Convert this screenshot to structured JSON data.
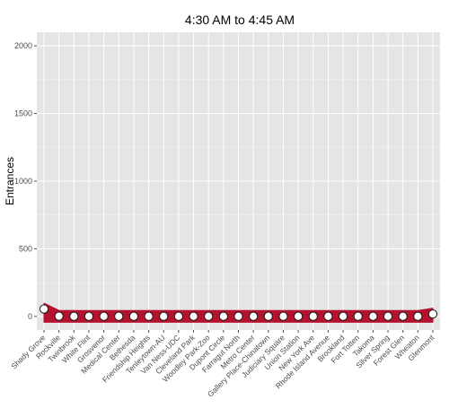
{
  "chart_data": {
    "type": "line",
    "title": "4:30 AM to 4:45 AM",
    "xlabel": "",
    "ylabel": "Entrances",
    "ylim": [
      -100,
      2100
    ],
    "yticks": [
      0,
      500,
      1000,
      1500,
      2000
    ],
    "grid": true,
    "colors": {
      "panel": "#e5e5e5",
      "grid": "#ffffff",
      "band": "#b5122e",
      "point_fill": "#ffffff",
      "point_stroke": "#1a1a1a"
    },
    "categories": [
      "Shady Grove",
      "Rockville",
      "Twinbrook",
      "White Flint",
      "Grosvenor",
      "Medical Center",
      "Bethesda",
      "Friendship Heights",
      "Tenleytown-AU",
      "Van Ness-UDC",
      "Cleveland Park",
      "Woodley Park-Zoo",
      "Dupont Circle",
      "Farragut North",
      "Metro Center",
      "Gallery Place-Chinatown",
      "Judiciary Square",
      "Union Station",
      "New York Ave",
      "Rhode Island Avenue",
      "Brookland",
      "Fort Totten",
      "Takoma",
      "Silver Spring",
      "Forest Glen",
      "Wheaton",
      "Glenmont"
    ],
    "values": [
      55,
      2,
      1,
      1,
      1,
      1,
      1,
      1,
      1,
      1,
      1,
      1,
      1,
      1,
      1,
      1,
      1,
      1,
      1,
      1,
      1,
      1,
      1,
      1,
      1,
      1,
      18
    ]
  }
}
